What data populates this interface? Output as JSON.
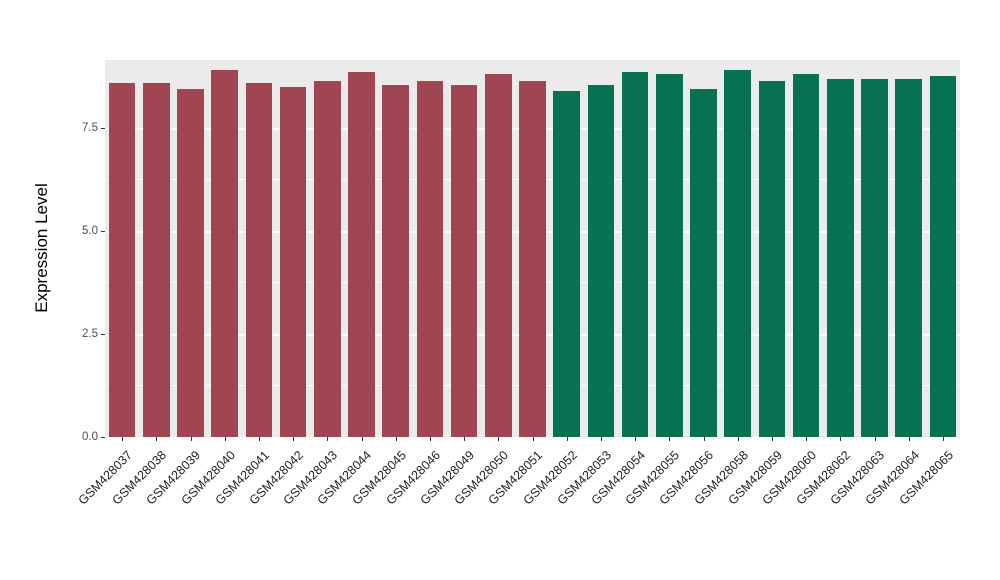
{
  "chart_data": {
    "type": "bar",
    "title": "",
    "xlabel": "",
    "ylabel": "Expression Level",
    "ylim": [
      0,
      9.15
    ],
    "yticks": [
      0.0,
      2.5,
      5.0,
      7.5
    ],
    "ytick_labels": [
      "0.0",
      "2.5",
      "5.0",
      "7.5"
    ],
    "minor_gridlines": [
      1.25,
      3.75,
      6.25
    ],
    "grid": "on",
    "legend_position": "none",
    "categories": [
      "GSM428037",
      "GSM428038",
      "GSM428039",
      "GSM428040",
      "GSM428041",
      "GSM428042",
      "GSM428043",
      "GSM428044",
      "GSM428045",
      "GSM428046",
      "GSM428049",
      "GSM428050",
      "GSM428051",
      "GSM428052",
      "GSM428053",
      "GSM428054",
      "GSM428055",
      "GSM428056",
      "GSM428058",
      "GSM428059",
      "GSM428060",
      "GSM428062",
      "GSM428063",
      "GSM428064",
      "GSM428065"
    ],
    "values": [
      8.6,
      8.6,
      8.45,
      8.9,
      8.6,
      8.5,
      8.65,
      8.85,
      8.55,
      8.65,
      8.55,
      8.8,
      8.65,
      8.4,
      8.55,
      8.85,
      8.8,
      8.45,
      8.9,
      8.65,
      8.8,
      8.7,
      8.7,
      8.7,
      8.75
    ],
    "colors": [
      "#A04552",
      "#A04552",
      "#A04552",
      "#A04552",
      "#A04552",
      "#A04552",
      "#A04552",
      "#A04552",
      "#A04552",
      "#A04552",
      "#A04552",
      "#A04552",
      "#A04552",
      "#067253",
      "#067253",
      "#067253",
      "#067253",
      "#067253",
      "#067253",
      "#067253",
      "#067253",
      "#067253",
      "#067253",
      "#067253",
      "#067253"
    ],
    "group_colors": {
      "group1": "#A04552",
      "group2": "#067253"
    }
  },
  "panel": {
    "background": "#EBEBEB",
    "grid_color": "#FFFFFF",
    "figure_background": "#FFFFFF"
  }
}
